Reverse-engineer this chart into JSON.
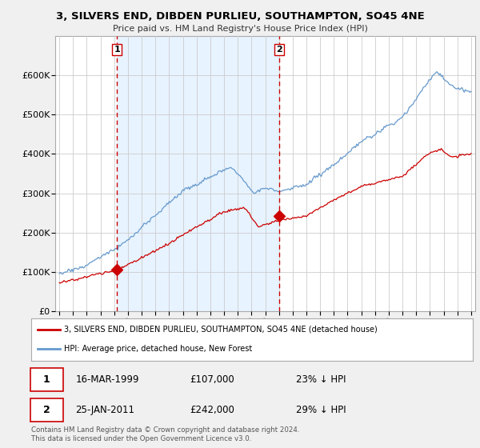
{
  "title": "3, SILVERS END, DIBDEN PURLIEU, SOUTHAMPTON, SO45 4NE",
  "subtitle": "Price paid vs. HM Land Registry's House Price Index (HPI)",
  "sale1_date": "16-MAR-1999",
  "sale1_price": 107000,
  "sale1_label": "23% ↓ HPI",
  "sale2_date": "25-JAN-2011",
  "sale2_label": "29% ↓ HPI",
  "sale2_price": 242000,
  "legend_red": "3, SILVERS END, DIBDEN PURLIEU, SOUTHAMPTON, SO45 4NE (detached house)",
  "legend_blue": "HPI: Average price, detached house, New Forest",
  "footer": "Contains HM Land Registry data © Crown copyright and database right 2024.\nThis data is licensed under the Open Government Licence v3.0.",
  "background_color": "#f0f0f0",
  "plot_background": "#ffffff",
  "grid_color": "#cccccc",
  "red_line_color": "#cc0000",
  "blue_line_color": "#6699cc",
  "shade_color": "#ddeeff",
  "vline_color": "#cc0000",
  "marker_color": "#cc0000",
  "ylim": [
    0,
    700000
  ],
  "yticks": [
    0,
    100000,
    200000,
    300000,
    400000,
    500000,
    600000
  ],
  "ytick_labels": [
    "£0",
    "£100K",
    "£200K",
    "£300K",
    "£400K",
    "£500K",
    "£600K"
  ]
}
